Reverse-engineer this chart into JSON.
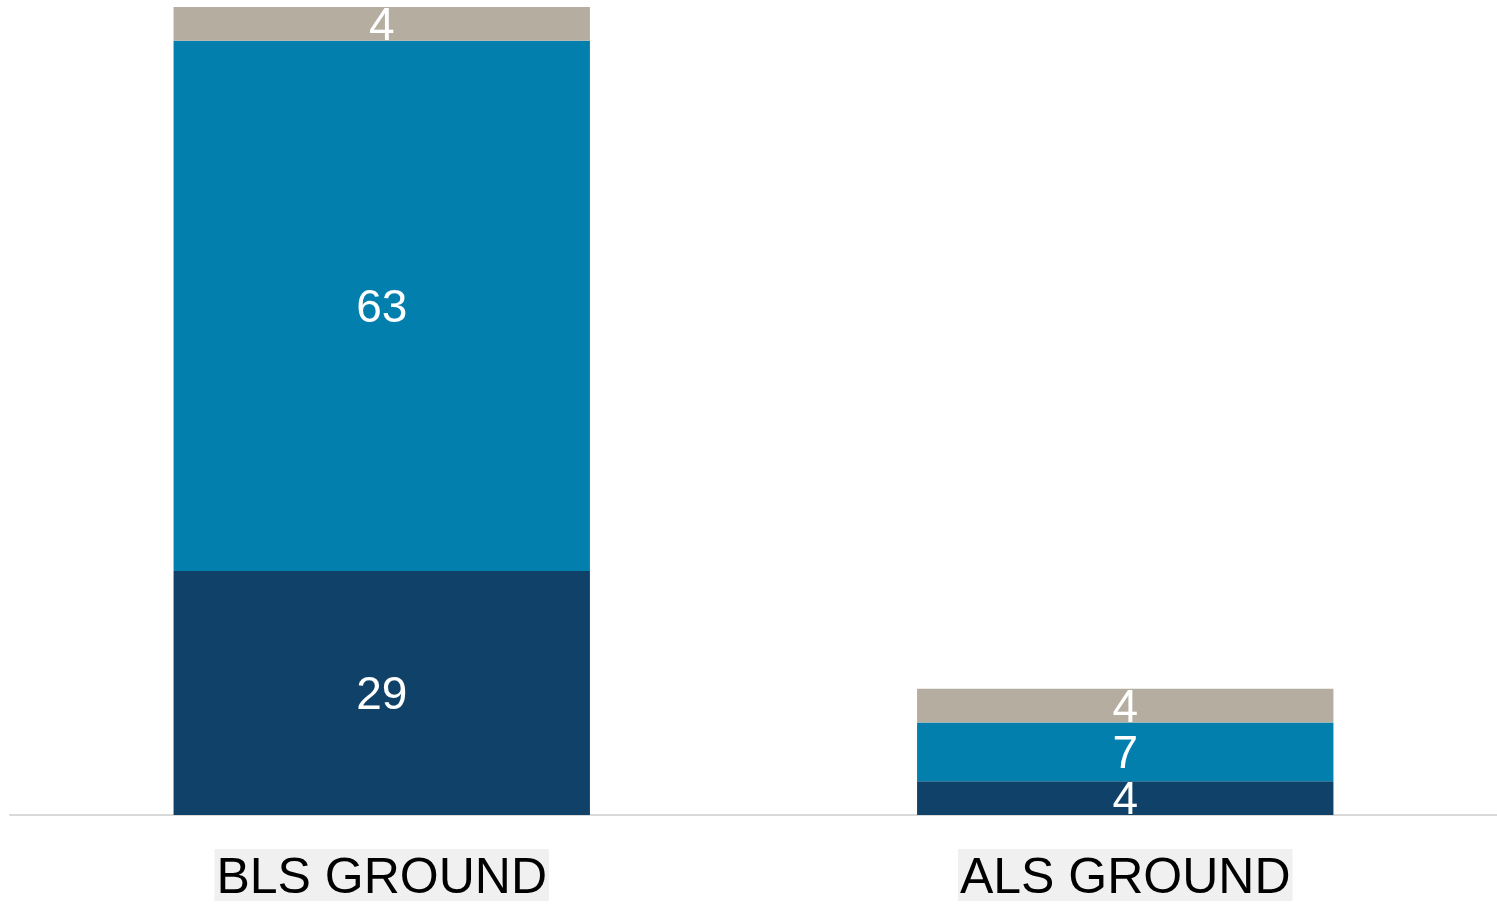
{
  "chart_data": {
    "type": "bar",
    "stacked": true,
    "data_labels": true,
    "categories": [
      "BLS GROUND",
      "ALS GROUND"
    ],
    "series": [
      {
        "color": "#0f4169",
        "values": [
          29,
          4
        ]
      },
      {
        "color": "#027fad",
        "values": [
          63,
          7
        ]
      },
      {
        "color": "#b5aea0",
        "values": [
          4,
          4
        ]
      }
    ]
  }
}
